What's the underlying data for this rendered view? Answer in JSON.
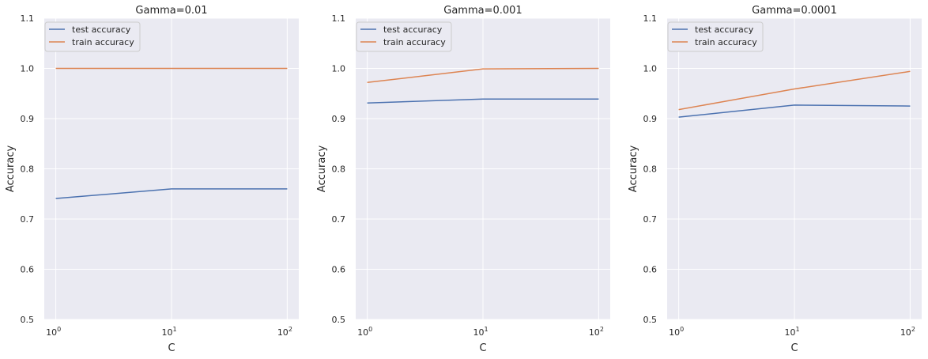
{
  "chart_data": [
    {
      "type": "line",
      "title": "Gamma=0.01",
      "xlabel": "C",
      "ylabel": "Accuracy",
      "xscale": "log",
      "x": [
        1,
        10,
        100
      ],
      "xticks": [
        "10^0",
        "10^1",
        "10^2"
      ],
      "ylim": [
        0.5,
        1.1
      ],
      "yticks": [
        "0.5",
        "0.6",
        "0.7",
        "0.8",
        "0.9",
        "1.0",
        "1.1"
      ],
      "grid": true,
      "legend": "top-left",
      "series": [
        {
          "name": "test accuracy",
          "color": "#4c72b0",
          "values": [
            0.741,
            0.76,
            0.76
          ]
        },
        {
          "name": "train accuracy",
          "color": "#dd8452",
          "values": [
            1.0,
            1.0,
            1.0
          ]
        }
      ]
    },
    {
      "type": "line",
      "title": "Gamma=0.001",
      "xlabel": "C",
      "ylabel": "Accuracy",
      "xscale": "log",
      "x": [
        1,
        10,
        100
      ],
      "xticks": [
        "10^0",
        "10^1",
        "10^2"
      ],
      "ylim": [
        0.5,
        1.1
      ],
      "yticks": [
        "0.5",
        "0.6",
        "0.7",
        "0.8",
        "0.9",
        "1.0",
        "1.1"
      ],
      "grid": true,
      "legend": "top-left",
      "series": [
        {
          "name": "test accuracy",
          "color": "#4c72b0",
          "values": [
            0.931,
            0.939,
            0.939
          ]
        },
        {
          "name": "train accuracy",
          "color": "#dd8452",
          "values": [
            0.972,
            0.999,
            1.0
          ]
        }
      ]
    },
    {
      "type": "line",
      "title": "Gamma=0.0001",
      "xlabel": "C",
      "ylabel": "Accuracy",
      "xscale": "log",
      "x": [
        1,
        10,
        100
      ],
      "xticks": [
        "10^0",
        "10^1",
        "10^2"
      ],
      "ylim": [
        0.5,
        1.1
      ],
      "yticks": [
        "0.5",
        "0.6",
        "0.7",
        "0.8",
        "0.9",
        "1.0",
        "1.1"
      ],
      "grid": true,
      "legend": "top-left",
      "series": [
        {
          "name": "test accuracy",
          "color": "#4c72b0",
          "values": [
            0.903,
            0.927,
            0.925
          ]
        },
        {
          "name": "train accuracy",
          "color": "#dd8452",
          "values": [
            0.918,
            0.959,
            0.994
          ]
        }
      ]
    }
  ]
}
